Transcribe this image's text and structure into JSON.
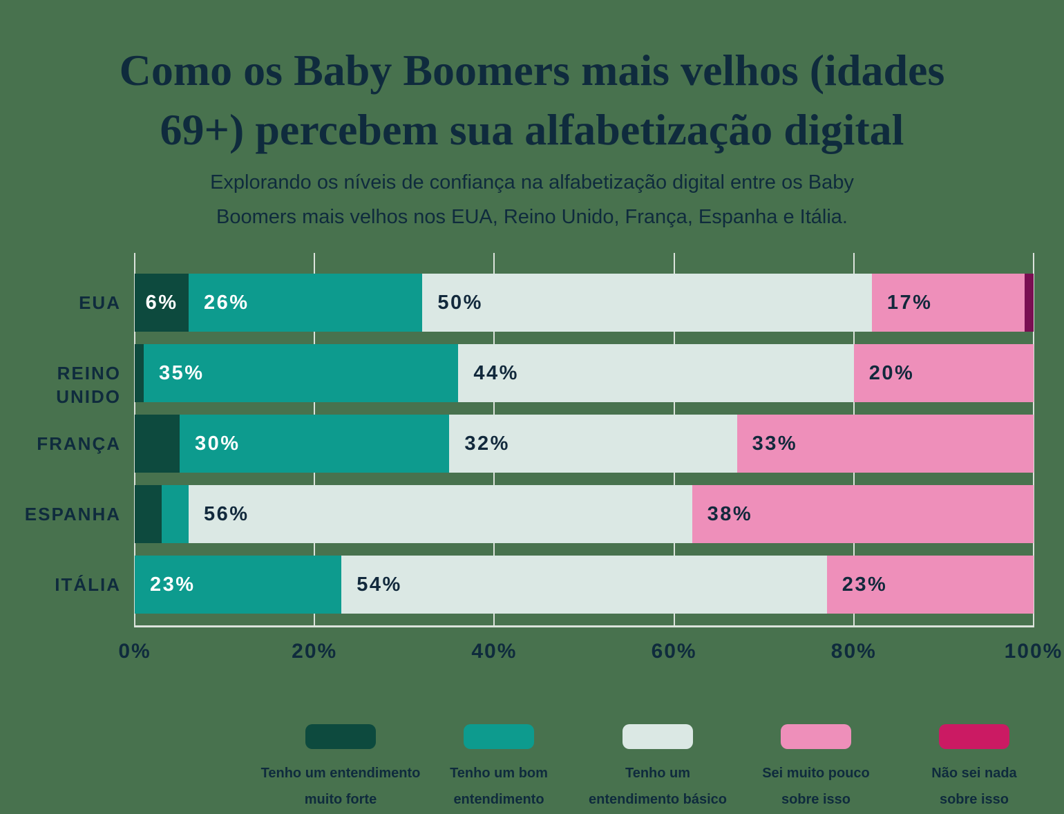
{
  "colors": {
    "background": "#48724e",
    "text": "#0f2b3d",
    "grid": "#dce3dc",
    "bar_label_light": "#ffffff",
    "bar_label_dark": "#12293c"
  },
  "chart_data": {
    "type": "bar",
    "variant": "horizontal_stacked_percentage",
    "title": "Como os Baby Boomers mais velhos (idades\n69+) percebem sua alfabetização digital",
    "subtitle": "Explorando os níveis de confiança na alfabetização digital entre os Baby\nBoomers mais velhos nos EUA, Reino Unido, França, Espanha e Itália.",
    "categories": [
      "EUA",
      "REINO UNIDO",
      "FRANÇA",
      "ESPANHA",
      "ITÁLIA"
    ],
    "series": [
      {
        "name": "Tenho um entendimento muito forte",
        "legend_lines": "Tenho um entendimento\nmuito forte",
        "color": "#0d4a3e",
        "legend_color": "#0d4a3e",
        "label_color": "#ffffff",
        "values": [
          6,
          1,
          5,
          3,
          0
        ],
        "labels": [
          "6%",
          "",
          "",
          "",
          ""
        ]
      },
      {
        "name": "Tenho um bom entendimento",
        "legend_lines": "Tenho um bom\nentendimento",
        "color": "#0d9b8e",
        "legend_color": "#0d9b8e",
        "label_color": "#ffffff",
        "values": [
          26,
          35,
          30,
          3,
          23
        ],
        "labels": [
          "26%",
          "35%",
          "30%",
          "",
          "23%"
        ]
      },
      {
        "name": "Tenho um entendimento básico",
        "legend_lines": "Tenho um\nentendimento básico",
        "color": "#dbe8e4",
        "legend_color": "#dbe8e4",
        "label_color": "#12293c",
        "values": [
          50,
          44,
          32,
          56,
          54
        ],
        "labels": [
          "50%",
          "44%",
          "32%",
          "56%",
          "54%"
        ]
      },
      {
        "name": "Sei muito pouco sobre isso",
        "legend_lines": "Sei muito pouco\nsobre isso",
        "color": "#ee8fba",
        "legend_color": "#ee8fba",
        "label_color": "#12293c",
        "values": [
          17,
          20,
          33,
          38,
          23
        ],
        "labels": [
          "17%",
          "20%",
          "33%",
          "38%",
          "23%"
        ]
      },
      {
        "name": "Não sei nada sobre isso",
        "legend_lines": "Não sei nada\nsobre isso",
        "color": "#7a0e52",
        "legend_color": "#cb1a63",
        "label_color": "#ffffff",
        "values": [
          1,
          0,
          0,
          0,
          0
        ],
        "labels": [
          "",
          "",
          "",
          "",
          ""
        ]
      }
    ],
    "x_ticks": [
      "0%",
      "20%",
      "40%",
      "60%",
      "80%",
      "100%"
    ],
    "xlim": [
      0,
      100
    ],
    "xlabel": "",
    "ylabel": "",
    "grid": true,
    "legend_position": "bottom"
  }
}
